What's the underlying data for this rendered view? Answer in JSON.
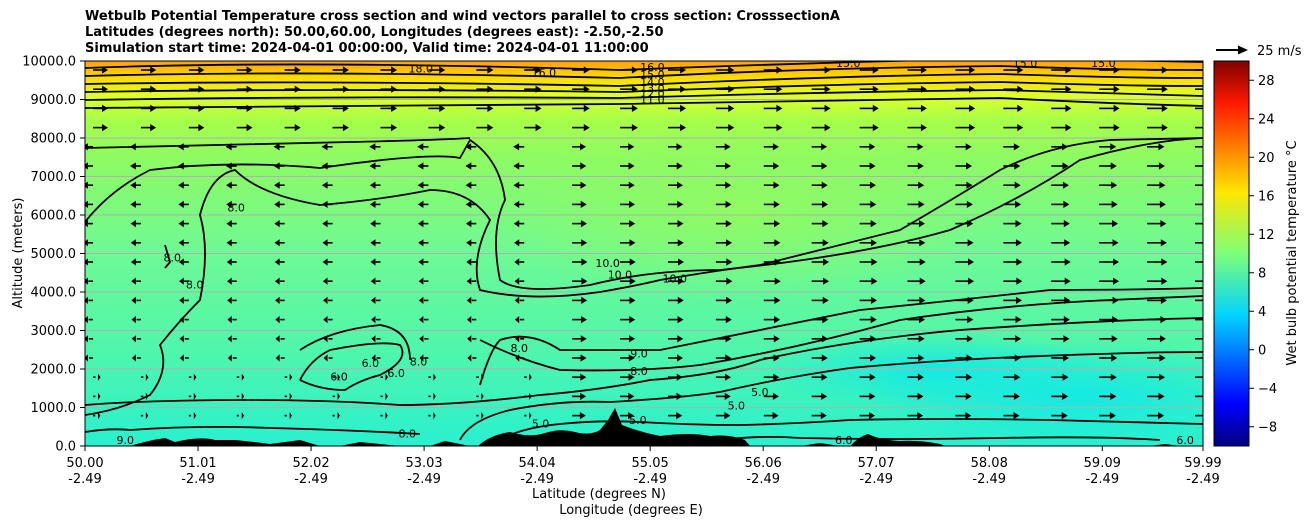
{
  "title": {
    "line1": "Wetbulb Potential Temperature cross section and wind vectors parallel to cross section: CrosssectionA",
    "line2": "Latitudes (degrees north): 50.00,60.00, Longitudes (degrees east): -2.50,-2.50",
    "line3": "Simulation start time: 2024-04-01 00:00:00, Valid time: 2024-04-01 11:00:00"
  },
  "wind_key": {
    "label": "25 m/s",
    "value_ms": 25
  },
  "chart_data": {
    "type": "heatmap",
    "subtype": "cross-section filled contour with contour lines and wind vectors",
    "ylabel": "Altitude (meters)",
    "xlabel_line1": "Latitude (degrees N)",
    "xlabel_line2": "Longitude (degrees E)",
    "ylim": [
      0,
      10000
    ],
    "yticks": [
      "0.0",
      "1000.0",
      "2000.0",
      "3000.0",
      "4000.0",
      "5000.0",
      "6000.0",
      "7000.0",
      "8000.0",
      "9000.0",
      "10000.0"
    ],
    "xlim": [
      50.0,
      59.99
    ],
    "xticks": [
      {
        "lat": "50.00",
        "lon": "-2.49"
      },
      {
        "lat": "51.01",
        "lon": "-2.49"
      },
      {
        "lat": "52.02",
        "lon": "-2.49"
      },
      {
        "lat": "53.03",
        "lon": "-2.49"
      },
      {
        "lat": "54.04",
        "lon": "-2.49"
      },
      {
        "lat": "55.05",
        "lon": "-2.49"
      },
      {
        "lat": "56.06",
        "lon": "-2.49"
      },
      {
        "lat": "57.07",
        "lon": "-2.49"
      },
      {
        "lat": "58.08",
        "lon": "-2.49"
      },
      {
        "lat": "59.09",
        "lon": "-2.49"
      },
      {
        "lat": "59.99",
        "lon": "-2.49"
      }
    ],
    "grid": "horizontal",
    "colorbar": {
      "label": "Wet bulb potential temperature °C",
      "ticks": [
        "−8",
        "−4",
        "0",
        "4",
        "8",
        "12",
        "16",
        "20",
        "24",
        "28"
      ],
      "range": [
        -10,
        30
      ],
      "colormap": "jet"
    },
    "contour_labels": [
      {
        "text": "18.0",
        "lat": 53.0,
        "alt": 9800
      },
      {
        "text": "16.0",
        "lat": 54.1,
        "alt": 9700
      },
      {
        "text": "16.0",
        "lat": 55.07,
        "alt": 9850
      },
      {
        "text": "15.0",
        "lat": 55.07,
        "alt": 9650
      },
      {
        "text": "14.0",
        "lat": 55.07,
        "alt": 9450
      },
      {
        "text": "13.0",
        "lat": 55.07,
        "alt": 9300
      },
      {
        "text": "12.0",
        "lat": 55.07,
        "alt": 9150
      },
      {
        "text": "11.0",
        "lat": 55.07,
        "alt": 9000
      },
      {
        "text": "15.0",
        "lat": 56.82,
        "alt": 9950
      },
      {
        "text": "15.0",
        "lat": 58.4,
        "alt": 9950
      },
      {
        "text": "15.0",
        "lat": 59.1,
        "alt": 9950
      },
      {
        "text": "8.0",
        "lat": 51.35,
        "alt": 6200
      },
      {
        "text": "8.0",
        "lat": 50.78,
        "alt": 4900
      },
      {
        "text": "8.0",
        "lat": 50.98,
        "alt": 4200
      },
      {
        "text": "10.0",
        "lat": 54.67,
        "alt": 4750
      },
      {
        "text": "10.0",
        "lat": 54.78,
        "alt": 4450
      },
      {
        "text": "10.0",
        "lat": 55.27,
        "alt": 4350
      },
      {
        "text": "8.0",
        "lat": 53.88,
        "alt": 2550
      },
      {
        "text": "9.0",
        "lat": 54.95,
        "alt": 2400
      },
      {
        "text": "8.0",
        "lat": 54.95,
        "alt": 1950
      },
      {
        "text": "6.0",
        "lat": 52.27,
        "alt": 1800
      },
      {
        "text": "6.0",
        "lat": 52.78,
        "alt": 1900
      },
      {
        "text": "6.0",
        "lat": 52.55,
        "alt": 2150
      },
      {
        "text": "8.0",
        "lat": 52.98,
        "alt": 2200
      },
      {
        "text": "5.0",
        "lat": 56.03,
        "alt": 1400
      },
      {
        "text": "5.0",
        "lat": 55.82,
        "alt": 1050
      },
      {
        "text": "5.0",
        "lat": 54.94,
        "alt": 680
      },
      {
        "text": "5.0",
        "lat": 54.07,
        "alt": 580
      },
      {
        "text": "8.0",
        "lat": 52.88,
        "alt": 320
      },
      {
        "text": "9.0",
        "lat": 50.36,
        "alt": 150
      },
      {
        "text": "6.0",
        "lat": 56.78,
        "alt": 150
      },
      {
        "text": "6.0",
        "lat": 59.83,
        "alt": 150
      }
    ]
  }
}
